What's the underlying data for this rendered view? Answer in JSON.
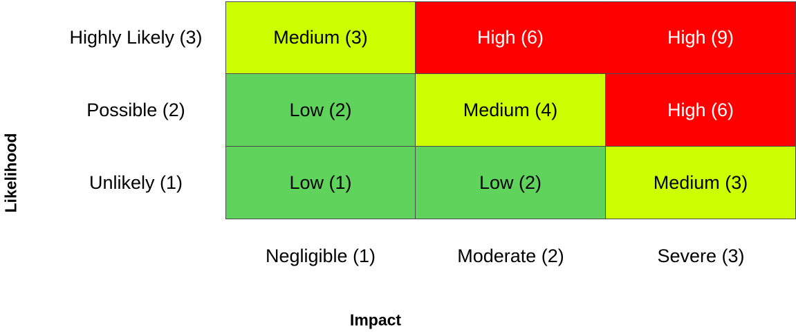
{
  "axes": {
    "x_title": "Impact",
    "y_title": "Likelihood"
  },
  "rows": [
    {
      "label": "Highly Likely (3)",
      "cells": [
        {
          "text": "Medium (3)",
          "level": "medium"
        },
        {
          "text": "High (6)",
          "level": "high"
        },
        {
          "text": "High (9)",
          "level": "high"
        }
      ]
    },
    {
      "label": "Possible (2)",
      "cells": [
        {
          "text": "Low (2)",
          "level": "low"
        },
        {
          "text": "Medium (4)",
          "level": "medium"
        },
        {
          "text": "High (6)",
          "level": "high"
        }
      ]
    },
    {
      "label": "Unlikely (1)",
      "cells": [
        {
          "text": "Low (1)",
          "level": "low"
        },
        {
          "text": "Low (2)",
          "level": "low"
        },
        {
          "text": "Medium (3)",
          "level": "medium"
        }
      ]
    }
  ],
  "columns": [
    {
      "label": "Negligible (1)"
    },
    {
      "label": "Moderate (2)"
    },
    {
      "label": "Severe (3)"
    }
  ],
  "colors": {
    "low": "#5fd35b",
    "medium": "#ccff00",
    "high": "#ff0000",
    "low_text": "#000000",
    "medium_text": "#000000",
    "high_text": "#ffffff"
  }
}
